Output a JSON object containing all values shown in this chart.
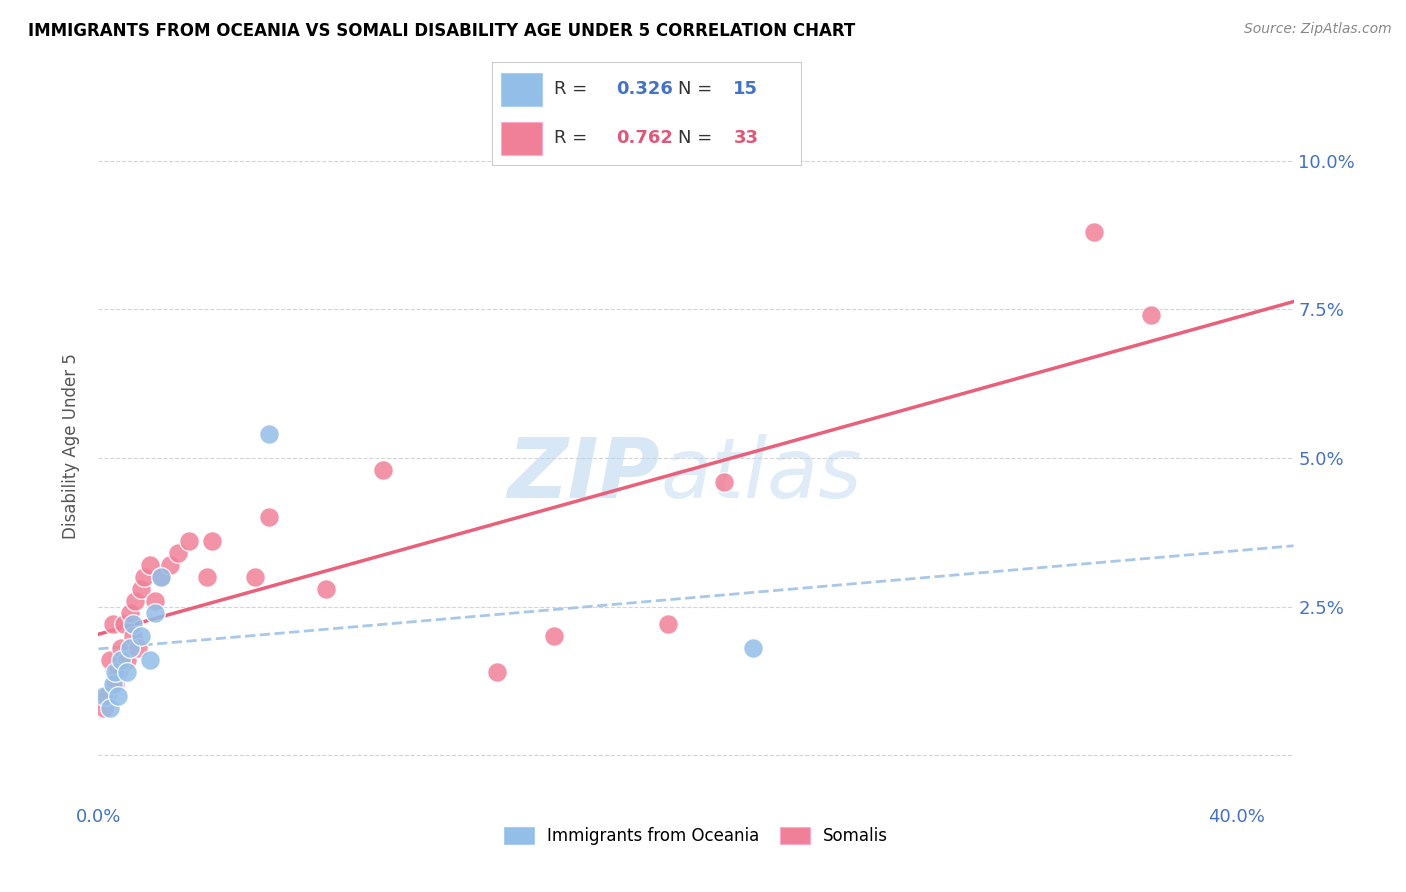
{
  "title": "IMMIGRANTS FROM OCEANIA VS SOMALI DISABILITY AGE UNDER 5 CORRELATION CHART",
  "source": "Source: ZipAtlas.com",
  "ylabel": "Disability Age Under 5",
  "xlim": [
    0.0,
    0.42
  ],
  "ylim": [
    -0.008,
    0.112
  ],
  "yticks": [
    0.0,
    0.025,
    0.05,
    0.075,
    0.1
  ],
  "ytick_labels": [
    "",
    "2.5%",
    "5.0%",
    "7.5%",
    "10.0%"
  ],
  "xticks": [
    0.0,
    0.08,
    0.16,
    0.24,
    0.32,
    0.4
  ],
  "xtick_labels": [
    "0.0%",
    "",
    "",
    "",
    "",
    "40.0%"
  ],
  "legend1_r": "0.326",
  "legend1_n": "15",
  "legend2_r": "0.762",
  "legend2_n": "33",
  "blue_color": "#92BEE8",
  "pink_color": "#F08098",
  "pink_line_color": "#E8607A",
  "dashed_line_color": "#A8C8E8",
  "watermark_zip": "ZIP",
  "watermark_atlas": "atlas",
  "scatter_oceania_x": [
    0.002,
    0.004,
    0.005,
    0.006,
    0.007,
    0.008,
    0.01,
    0.011,
    0.012,
    0.015,
    0.018,
    0.02,
    0.022,
    0.06,
    0.23
  ],
  "scatter_oceania_y": [
    0.01,
    0.008,
    0.012,
    0.014,
    0.01,
    0.016,
    0.014,
    0.018,
    0.022,
    0.02,
    0.016,
    0.024,
    0.03,
    0.054,
    0.018
  ],
  "scatter_somali_x": [
    0.002,
    0.003,
    0.004,
    0.005,
    0.006,
    0.007,
    0.008,
    0.009,
    0.01,
    0.011,
    0.012,
    0.013,
    0.014,
    0.015,
    0.016,
    0.018,
    0.02,
    0.022,
    0.025,
    0.028,
    0.032,
    0.038,
    0.04,
    0.055,
    0.06,
    0.08,
    0.1,
    0.14,
    0.16,
    0.2,
    0.22,
    0.35,
    0.37
  ],
  "scatter_somali_y": [
    0.008,
    0.01,
    0.016,
    0.022,
    0.012,
    0.014,
    0.018,
    0.022,
    0.016,
    0.024,
    0.02,
    0.026,
    0.018,
    0.028,
    0.03,
    0.032,
    0.026,
    0.03,
    0.032,
    0.034,
    0.036,
    0.03,
    0.036,
    0.03,
    0.04,
    0.028,
    0.048,
    0.014,
    0.02,
    0.022,
    0.046,
    0.088,
    0.074
  ]
}
